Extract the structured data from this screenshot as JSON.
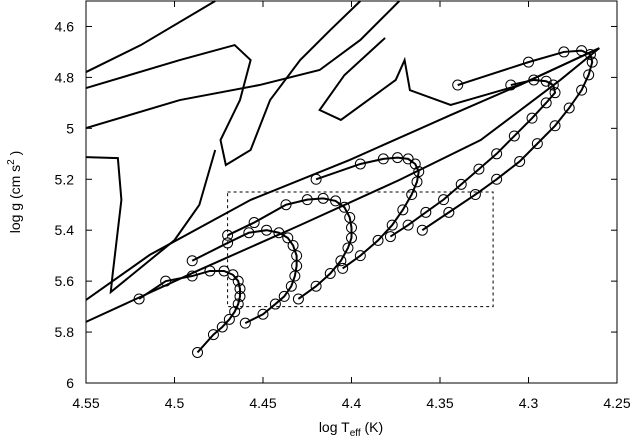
{
  "chart_data": {
    "type": "line",
    "xlabel": {
      "text": "log T",
      "sub": "eff",
      "tail": " (K)"
    },
    "ylabel": {
      "text": "log g (cm s",
      "sup": "2",
      "tail": " )"
    },
    "xlim": [
      4.55,
      4.25
    ],
    "ylim": [
      6,
      4.5
    ],
    "xticks": [
      4.55,
      4.5,
      4.45,
      4.4,
      4.35,
      4.3,
      4.25
    ],
    "yticks": [
      4.6,
      4.8,
      5,
      5.2,
      5.4,
      5.6,
      5.8,
      6
    ],
    "color": "#000000",
    "box": {
      "x": [
        4.47,
        4.32
      ],
      "y": [
        5.25,
        5.7
      ]
    },
    "series": [
      {
        "x": [
          4.55,
          4.519,
          4.477
        ],
        "values": [
          4.779,
          4.673,
          4.5
        ]
      },
      {
        "x": [
          4.55,
          4.497,
          4.466,
          4.457,
          4.463,
          4.474,
          4.471,
          4.457,
          4.446,
          4.429,
          4.412,
          4.395
        ],
        "values": [
          4.842,
          4.732,
          4.673,
          4.732,
          4.889,
          5.046,
          5.144,
          5.085,
          4.889,
          4.732,
          4.614,
          4.5
        ]
      },
      {
        "x": [
          4.55,
          4.497,
          4.452,
          4.418,
          4.395,
          4.378,
          4.373
        ],
        "values": [
          4.999,
          4.889,
          4.83,
          4.771,
          4.653,
          4.535,
          4.5
        ]
      },
      {
        "x": [
          4.381,
          4.404,
          4.418,
          4.406,
          4.375,
          4.37,
          4.367,
          4.344,
          4.305,
          4.26
        ],
        "values": [
          4.645,
          4.791,
          4.928,
          4.967,
          4.81,
          4.732,
          4.85,
          4.908,
          4.83,
          4.685
        ]
      },
      {
        "x": [
          4.55,
          4.532,
          4.53,
          4.535,
          4.536,
          4.5,
          4.486,
          4.477
        ],
        "values": [
          5.113,
          5.117,
          5.281,
          5.576,
          5.643,
          5.439,
          5.301,
          5.085
        ]
      },
      {
        "x": [
          4.55,
          4.514,
          4.457,
          4.401,
          4.344,
          4.305,
          4.26
        ],
        "values": [
          5.674,
          5.497,
          5.281,
          5.124,
          4.948,
          4.83,
          4.685
        ]
      },
      {
        "x": [
          4.55,
          4.486,
          4.429,
          4.373,
          4.327,
          4.282,
          4.26
        ],
        "values": [
          5.76,
          5.556,
          5.38,
          5.203,
          5.046,
          4.81,
          4.685
        ]
      },
      {
        "marker": "circle",
        "x": [
          4.487,
          4.478,
          4.473,
          4.469,
          4.466,
          4.464,
          4.463,
          4.463,
          4.464,
          4.467,
          4.472,
          4.48,
          4.49,
          4.505,
          4.52
        ],
        "values": [
          5.88,
          5.81,
          5.78,
          5.75,
          5.72,
          5.69,
          5.66,
          5.63,
          5.6,
          5.575,
          5.56,
          5.56,
          5.58,
          5.6,
          5.67
        ]
      },
      {
        "marker": "circle",
        "x": [
          4.46,
          4.45,
          4.443,
          4.438,
          4.434,
          4.432,
          4.431,
          4.431,
          4.433,
          4.436,
          4.441,
          4.448,
          4.458,
          4.47,
          4.49
        ],
        "values": [
          5.765,
          5.73,
          5.69,
          5.66,
          5.62,
          5.58,
          5.54,
          5.5,
          5.46,
          5.43,
          5.41,
          5.4,
          5.41,
          5.45,
          5.52
        ]
      },
      {
        "marker": "circle",
        "x": [
          4.43,
          4.42,
          4.412,
          4.406,
          4.402,
          4.4,
          4.4,
          4.401,
          4.404,
          4.409,
          4.416,
          4.425,
          4.437,
          4.455,
          4.47
        ],
        "values": [
          5.67,
          5.62,
          5.57,
          5.52,
          5.47,
          5.43,
          5.39,
          5.35,
          5.31,
          5.285,
          5.275,
          5.28,
          5.3,
          5.37,
          5.42
        ]
      },
      {
        "marker": "circle",
        "x": [
          4.405,
          4.395,
          4.385,
          4.377,
          4.371,
          4.366,
          4.363,
          4.362,
          4.364,
          4.368,
          4.374,
          4.382,
          4.395,
          4.42
        ],
        "values": [
          5.55,
          5.5,
          5.44,
          5.38,
          5.32,
          5.26,
          5.21,
          5.17,
          5.14,
          5.12,
          5.115,
          5.12,
          5.14,
          5.2
        ]
      },
      {
        "marker": "circle",
        "x": [
          4.378,
          4.368,
          4.358,
          4.348,
          4.338,
          4.328,
          4.318,
          4.308,
          4.298,
          4.29,
          4.285,
          4.286,
          4.29,
          4.297,
          4.31
        ],
        "values": [
          5.425,
          5.38,
          5.33,
          5.28,
          5.22,
          5.16,
          5.1,
          5.03,
          4.96,
          4.9,
          4.86,
          4.83,
          4.815,
          4.81,
          4.83
        ]
      },
      {
        "marker": "circle",
        "x": [
          4.36,
          4.345,
          4.33,
          4.318,
          4.305,
          4.295,
          4.285,
          4.277,
          4.27,
          4.266,
          4.264,
          4.265,
          4.27,
          4.28,
          4.3,
          4.34
        ],
        "values": [
          5.4,
          5.33,
          5.26,
          5.2,
          5.13,
          5.06,
          4.99,
          4.92,
          4.85,
          4.79,
          4.74,
          4.71,
          4.695,
          4.7,
          4.74,
          4.83
        ]
      }
    ]
  }
}
